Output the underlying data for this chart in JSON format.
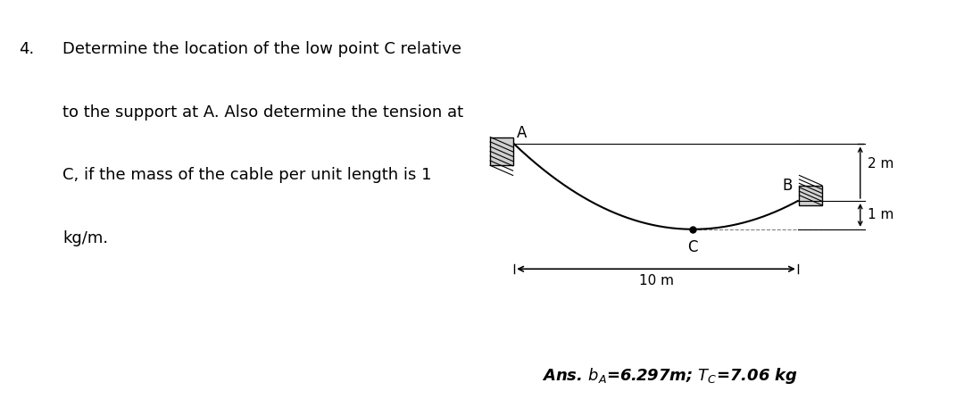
{
  "problem_number": "4.",
  "problem_text_line1": "Determine the location of the low point C relative",
  "problem_text_line2": "to the support at A. Also determine the tension at",
  "problem_text_line3": "C, if the mass of the cable per unit length is 1",
  "problem_text_line4": "kg/m.",
  "label_A": "A",
  "label_B": "B",
  "label_C": "C",
  "label_10m": "10 m",
  "label_2m": "2 m",
  "label_1m": "1 m",
  "bg_color": "#ffffff",
  "line_color": "#000000",
  "A": [
    0,
    3
  ],
  "B": [
    10,
    1
  ],
  "C": [
    6.3,
    0
  ],
  "xlim": [
    -2.5,
    14.5
  ],
  "ylim": [
    -2.5,
    5.0
  ]
}
